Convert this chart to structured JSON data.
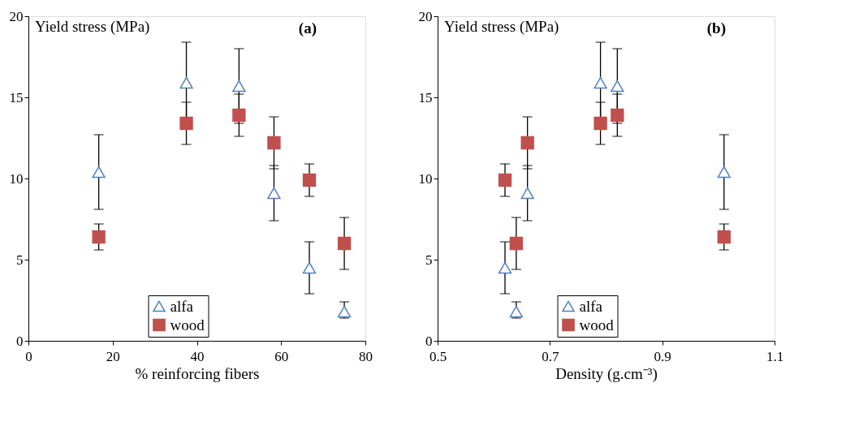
{
  "chart_data": [
    {
      "type": "scatter",
      "title": "(a)",
      "ylabel": "Yield stress (MPa)",
      "xlabel": "% reinforcing fibers",
      "xlim": [
        0,
        80
      ],
      "xticks": [
        0,
        20,
        40,
        60,
        80
      ],
      "ylim": [
        0,
        20
      ],
      "yticks": [
        0,
        5,
        10,
        15,
        20
      ],
      "grid": false,
      "legend": "bottom",
      "series": [
        {
          "name": "alfa",
          "color": "#4f81bd",
          "marker": "triangle",
          "x": [
            16.7,
            37.5,
            50,
            58.3,
            66.7,
            75
          ],
          "values": [
            10.4,
            15.9,
            15.7,
            9.1,
            4.5,
            1.8
          ],
          "errors": [
            2.3,
            2.5,
            2.3,
            1.7,
            1.6,
            [
              1.4,
              2.4
            ]
          ]
        },
        {
          "name": "wood",
          "color": "#c0504d",
          "marker": "square",
          "x": [
            16.7,
            37.5,
            50,
            58.3,
            66.7,
            75
          ],
          "values": [
            6.4,
            13.4,
            13.9,
            12.2,
            9.9,
            6.0
          ],
          "errors": [
            0.8,
            1.3,
            1.3,
            1.6,
            1.0,
            1.6
          ]
        }
      ]
    },
    {
      "type": "scatter",
      "title": "(b)",
      "ylabel": "Yield stress (MPa)",
      "xlabel": "Density (g.cm⁻³)",
      "xlim": [
        0.5,
        1.1
      ],
      "xticks": [
        0.5,
        0.7,
        0.9,
        1.1
      ],
      "ylim": [
        0,
        20
      ],
      "yticks": [
        0,
        5,
        10,
        15,
        20
      ],
      "grid": false,
      "legend": "bottom",
      "series": [
        {
          "name": "alfa",
          "color": "#4f81bd",
          "marker": "triangle",
          "x": [
            1.01,
            0.79,
            0.82,
            0.66,
            0.62,
            0.64
          ],
          "values": [
            10.4,
            15.9,
            15.7,
            9.1,
            4.5,
            1.8
          ],
          "errors": [
            2.3,
            2.5,
            2.3,
            1.7,
            1.6,
            [
              1.4,
              2.4
            ]
          ]
        },
        {
          "name": "wood",
          "color": "#c0504d",
          "marker": "square",
          "x": [
            1.01,
            0.79,
            0.82,
            0.66,
            0.62,
            0.64
          ],
          "values": [
            6.4,
            13.4,
            13.9,
            12.2,
            9.9,
            6.0
          ],
          "errors": [
            0.8,
            1.3,
            1.3,
            1.6,
            1.0,
            1.6
          ]
        }
      ]
    }
  ]
}
